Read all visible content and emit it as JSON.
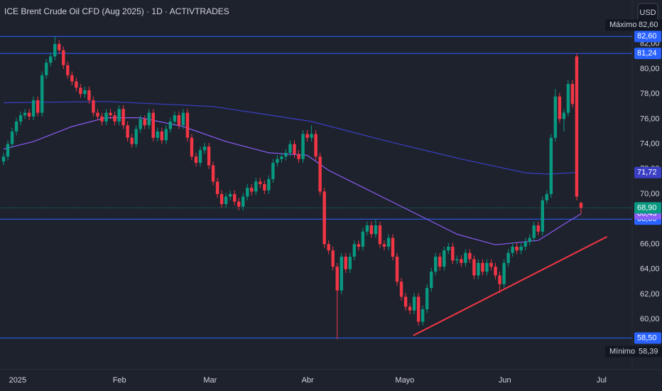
{
  "chart_data": {
    "type": "candlestick",
    "title": "ICE Brent Crude Oil CFD (Aug 2025) · 1D · ACTIVTRADES",
    "currency": "USD",
    "up_color": "#089981",
    "down_color": "#f23645",
    "x": [
      0,
      1,
      2,
      3,
      4,
      5,
      6,
      7,
      8,
      9,
      10,
      11,
      12,
      13,
      14,
      15,
      16,
      17,
      18,
      19,
      20,
      21,
      22,
      23,
      24,
      25,
      26,
      27,
      28,
      29,
      30,
      31,
      32,
      33,
      34,
      35,
      36,
      37,
      38,
      39,
      40,
      41,
      42,
      43,
      44,
      45,
      46,
      47,
      48,
      49,
      50,
      51,
      52,
      53,
      54,
      55,
      56,
      57,
      58,
      59,
      60,
      61,
      62,
      63,
      64,
      65,
      66,
      67,
      68,
      69,
      70,
      71,
      72,
      73,
      74,
      75,
      76,
      77,
      78,
      79,
      80,
      81,
      82,
      83,
      84,
      85,
      86,
      87,
      88,
      89,
      90,
      91,
      92,
      93,
      94,
      95,
      96,
      97,
      98,
      99,
      100,
      101,
      102,
      103,
      104,
      105,
      106,
      107,
      108,
      109,
      110,
      111,
      112,
      113,
      114,
      115,
      116,
      117,
      118,
      119,
      120,
      121,
      122,
      123,
      124,
      125,
      126,
      127,
      128,
      129,
      130,
      131,
      132,
      133,
      134,
      135
    ],
    "ohlc": [
      [
        72.6,
        73.3,
        72.3,
        73.0
      ],
      [
        73.0,
        74.3,
        72.7,
        74.0
      ],
      [
        74.0,
        75.3,
        73.7,
        75.0
      ],
      [
        75.0,
        76.1,
        74.7,
        75.8
      ],
      [
        75.8,
        76.6,
        75.5,
        76.3
      ],
      [
        76.3,
        76.8,
        76.0,
        76.5
      ],
      [
        76.5,
        76.8,
        75.9,
        76.2
      ],
      [
        76.2,
        77.8,
        75.9,
        77.5
      ],
      [
        77.5,
        77.8,
        76.2,
        76.5
      ],
      [
        76.5,
        79.8,
        76.2,
        79.5
      ],
      [
        79.5,
        80.8,
        79.2,
        80.5
      ],
      [
        80.5,
        81.3,
        80.2,
        81.0
      ],
      [
        81.0,
        82.6,
        80.7,
        82.0
      ],
      [
        82.0,
        82.3,
        81.2,
        81.5
      ],
      [
        81.5,
        81.8,
        80.0,
        80.3
      ],
      [
        80.3,
        80.6,
        79.2,
        79.5
      ],
      [
        79.5,
        79.8,
        78.7,
        79.0
      ],
      [
        79.0,
        79.3,
        78.2,
        78.5
      ],
      [
        78.5,
        78.8,
        77.7,
        78.0
      ],
      [
        78.0,
        78.6,
        77.7,
        78.3
      ],
      [
        78.3,
        78.6,
        77.2,
        77.5
      ],
      [
        77.5,
        77.8,
        76.2,
        76.5
      ],
      [
        76.5,
        76.8,
        75.9,
        76.2
      ],
      [
        76.2,
        76.5,
        75.5,
        75.8
      ],
      [
        75.8,
        76.8,
        75.5,
        76.5
      ],
      [
        76.5,
        76.8,
        76.0,
        76.3
      ],
      [
        76.3,
        76.6,
        75.5,
        75.8
      ],
      [
        75.8,
        77.1,
        75.5,
        76.8
      ],
      [
        76.8,
        77.1,
        75.2,
        75.5
      ],
      [
        75.5,
        75.8,
        74.2,
        74.5
      ],
      [
        74.5,
        74.8,
        73.7,
        74.0
      ],
      [
        74.0,
        75.5,
        73.7,
        75.2
      ],
      [
        75.2,
        76.3,
        74.9,
        76.0
      ],
      [
        76.0,
        76.3,
        75.2,
        75.5
      ],
      [
        75.5,
        76.8,
        75.2,
        76.5
      ],
      [
        76.5,
        76.8,
        74.2,
        74.5
      ],
      [
        74.5,
        75.3,
        74.2,
        75.0
      ],
      [
        75.0,
        75.3,
        74.0,
        74.3
      ],
      [
        74.3,
        75.5,
        74.0,
        75.2
      ],
      [
        75.2,
        76.1,
        74.9,
        75.8
      ],
      [
        75.8,
        76.6,
        75.5,
        76.3
      ],
      [
        76.3,
        76.6,
        75.2,
        75.5
      ],
      [
        75.5,
        76.8,
        75.2,
        76.5
      ],
      [
        76.5,
        76.8,
        74.2,
        74.5
      ],
      [
        74.5,
        74.8,
        72.7,
        73.0
      ],
      [
        73.0,
        73.3,
        72.2,
        72.5
      ],
      [
        72.5,
        73.8,
        72.2,
        73.5
      ],
      [
        73.5,
        74.1,
        73.2,
        73.8
      ],
      [
        73.8,
        74.1,
        72.0,
        72.3
      ],
      [
        72.3,
        72.6,
        70.7,
        71.0
      ],
      [
        71.0,
        71.3,
        69.7,
        70.0
      ],
      [
        70.0,
        70.3,
        68.9,
        69.2
      ],
      [
        69.2,
        70.1,
        68.9,
        69.8
      ],
      [
        69.8,
        70.3,
        69.5,
        70.0
      ],
      [
        70.0,
        70.3,
        69.1,
        69.4
      ],
      [
        69.4,
        69.7,
        68.7,
        69.0
      ],
      [
        69.0,
        70.1,
        68.7,
        69.8
      ],
      [
        69.8,
        70.8,
        69.5,
        70.5
      ],
      [
        70.5,
        70.8,
        69.9,
        70.2
      ],
      [
        70.2,
        71.3,
        69.9,
        71.0
      ],
      [
        71.0,
        71.3,
        70.5,
        70.8
      ],
      [
        70.8,
        71.1,
        70.0,
        70.3
      ],
      [
        70.3,
        71.5,
        70.0,
        71.2
      ],
      [
        71.2,
        72.8,
        70.9,
        72.5
      ],
      [
        72.5,
        73.1,
        72.2,
        72.8
      ],
      [
        72.8,
        73.3,
        72.5,
        73.0
      ],
      [
        73.0,
        73.6,
        72.7,
        73.3
      ],
      [
        73.3,
        74.3,
        73.0,
        74.0
      ],
      [
        74.0,
        74.3,
        72.9,
        73.2
      ],
      [
        73.2,
        73.5,
        72.5,
        72.8
      ],
      [
        72.8,
        75.1,
        72.5,
        74.8
      ],
      [
        74.8,
        75.1,
        74.2,
        74.5
      ],
      [
        74.5,
        75.5,
        74.2,
        74.8
      ],
      [
        74.8,
        75.1,
        72.7,
        73.0
      ],
      [
        73.0,
        73.3,
        69.9,
        70.2
      ],
      [
        70.2,
        70.5,
        65.7,
        66.0
      ],
      [
        66.0,
        66.3,
        65.2,
        65.5
      ],
      [
        65.5,
        65.8,
        63.9,
        64.2
      ],
      [
        64.2,
        64.5,
        58.39,
        62.3
      ],
      [
        62.3,
        65.3,
        62.0,
        65.0
      ],
      [
        65.0,
        65.3,
        63.7,
        64.0
      ],
      [
        64.0,
        65.3,
        63.7,
        65.0
      ],
      [
        65.0,
        66.3,
        64.7,
        66.0
      ],
      [
        66.0,
        66.3,
        65.5,
        65.8
      ],
      [
        65.8,
        67.3,
        65.5,
        67.0
      ],
      [
        67.0,
        67.8,
        66.7,
        67.5
      ],
      [
        67.5,
        67.8,
        66.5,
        66.8
      ],
      [
        66.8,
        68.0,
        66.5,
        67.5
      ],
      [
        67.5,
        67.8,
        65.7,
        66.0
      ],
      [
        66.0,
        66.3,
        65.5,
        65.8
      ],
      [
        65.8,
        66.8,
        65.5,
        66.5
      ],
      [
        66.5,
        66.8,
        64.7,
        65.0
      ],
      [
        65.0,
        65.3,
        62.7,
        63.0
      ],
      [
        63.0,
        63.3,
        61.5,
        61.8
      ],
      [
        61.8,
        62.1,
        60.7,
        61.0
      ],
      [
        61.0,
        61.3,
        60.4,
        60.7
      ],
      [
        60.7,
        62.1,
        60.4,
        61.8
      ],
      [
        61.8,
        62.1,
        59.5,
        59.8
      ],
      [
        59.8,
        61.1,
        59.5,
        60.8
      ],
      [
        60.8,
        62.8,
        60.5,
        62.5
      ],
      [
        62.5,
        64.1,
        62.2,
        63.8
      ],
      [
        63.8,
        65.3,
        63.5,
        65.0
      ],
      [
        65.0,
        65.3,
        63.9,
        64.2
      ],
      [
        64.2,
        65.8,
        63.9,
        65.5
      ],
      [
        65.5,
        66.1,
        65.2,
        65.8
      ],
      [
        65.8,
        66.1,
        64.4,
        64.7
      ],
      [
        64.7,
        65.1,
        64.4,
        64.8
      ],
      [
        64.8,
        65.1,
        64.2,
        64.5
      ],
      [
        64.5,
        65.6,
        64.2,
        65.3
      ],
      [
        65.3,
        65.6,
        64.5,
        64.8
      ],
      [
        64.8,
        65.1,
        63.2,
        63.5
      ],
      [
        63.5,
        64.8,
        63.2,
        64.5
      ],
      [
        64.5,
        64.8,
        63.5,
        63.8
      ],
      [
        63.8,
        64.8,
        63.5,
        64.5
      ],
      [
        64.5,
        64.8,
        63.9,
        64.2
      ],
      [
        64.2,
        64.5,
        63.2,
        63.5
      ],
      [
        63.5,
        63.8,
        62.1,
        62.8
      ],
      [
        62.8,
        64.8,
        62.5,
        64.5
      ],
      [
        64.5,
        65.6,
        64.2,
        65.3
      ],
      [
        65.3,
        66.1,
        65.0,
        65.8
      ],
      [
        65.8,
        66.1,
        65.2,
        65.5
      ],
      [
        65.5,
        66.1,
        65.2,
        65.8
      ],
      [
        65.8,
        66.5,
        65.5,
        66.2
      ],
      [
        66.2,
        66.8,
        65.9,
        66.5
      ],
      [
        66.5,
        67.8,
        66.2,
        67.5
      ],
      [
        67.5,
        67.8,
        66.7,
        67.0
      ],
      [
        67.0,
        69.8,
        66.7,
        69.5
      ],
      [
        69.5,
        70.3,
        69.2,
        70.0
      ],
      [
        70.0,
        74.8,
        69.7,
        74.5
      ],
      [
        74.5,
        78.4,
        74.2,
        77.8
      ],
      [
        77.8,
        78.1,
        75.7,
        76.0
      ],
      [
        76.0,
        76.8,
        75.0,
        76.5
      ],
      [
        76.5,
        79.1,
        76.2,
        78.8
      ],
      [
        78.8,
        79.1,
        76.9,
        77.2
      ],
      [
        81.0,
        81.24,
        69.5,
        69.8
      ],
      [
        69.3,
        69.4,
        68.4,
        68.9
      ]
    ],
    "series": [
      {
        "color": "#3a3fc4",
        "x": [
          0,
          24,
          49,
          72,
          90,
          107,
          122,
          127,
          134
        ],
        "values": [
          77.3,
          77.4,
          77.0,
          75.8,
          74.2,
          72.8,
          71.7,
          71.6,
          71.72
        ],
        "value_labels": [
          null,
          null,
          null,
          null,
          null,
          null,
          null,
          null,
          "71,72"
        ]
      },
      {
        "color": "#8b5cf6",
        "x": [
          0,
          7,
          16,
          24,
          32,
          42,
          52,
          62,
          71,
          76,
          86,
          96,
          106,
          115,
          125,
          132,
          135
        ],
        "values": [
          73.6,
          74.2,
          75.4,
          76.1,
          76.1,
          75.4,
          74.2,
          73.3,
          73.1,
          71.9,
          70.2,
          68.5,
          66.8,
          65.95,
          66.3,
          67.8,
          68.43
        ],
        "value_labels": [
          null,
          null,
          null,
          null,
          null,
          null,
          null,
          null,
          null,
          null,
          null,
          null,
          null,
          null,
          null,
          null,
          "68,43"
        ]
      }
    ],
    "trendline": {
      "color": "#f23645",
      "x": [
        95.8,
        141.1
      ],
      "values": [
        58.7,
        66.6
      ]
    },
    "levels": {
      "color": "#2962ff",
      "values": [
        82.6,
        81.24,
        68.0,
        58.5
      ],
      "value_labels": [
        "82,60",
        "81,24",
        "68,00",
        "58,50"
      ]
    },
    "last_price": {
      "value": 68.9,
      "label": "68,90",
      "color": "#089981"
    },
    "maximum": {
      "text": "Máximo",
      "value": 82.6,
      "label": "82,60"
    },
    "minimum": {
      "text": "Mínimo",
      "value": 58.39,
      "label": "58,39"
    },
    "xlim": [
      -0.83,
      146.96
    ],
    "xticks": [
      {
        "value": 3.3,
        "label": "2025"
      },
      {
        "value": 27.1,
        "label": "Feb"
      },
      {
        "value": 48.3,
        "label": "Mar"
      },
      {
        "value": 71.1,
        "label": "Abr"
      },
      {
        "value": 93.8,
        "label": "Mayo"
      },
      {
        "value": 117.2,
        "label": "Jun"
      },
      {
        "value": 139.8,
        "label": "Jul"
      }
    ],
    "ylim": [
      55.97,
      85.51
    ],
    "yticks": [
      {
        "value": 60,
        "label": "60,00"
      },
      {
        "value": 62,
        "label": "62,00"
      },
      {
        "value": 64,
        "label": "64,00"
      },
      {
        "value": 66,
        "label": "66,00"
      },
      {
        "value": 70,
        "label": "70,00"
      },
      {
        "value": 72,
        "label": "72,00"
      },
      {
        "value": 74,
        "label": "74,00"
      },
      {
        "value": 76,
        "label": "76,00"
      },
      {
        "value": 78,
        "label": "78,00"
      },
      {
        "value": 80,
        "label": "80,00"
      },
      {
        "value": 82,
        "label": "82,00"
      }
    ],
    "grid": false
  }
}
